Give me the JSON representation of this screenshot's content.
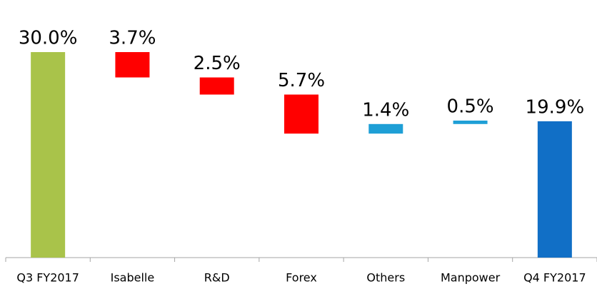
{
  "chart_data": {
    "type": "waterfall",
    "categories": [
      "Q3 FY2017",
      "Isabelle",
      "R&D",
      "Forex",
      "Others",
      "Manpower",
      "Q4 FY2017"
    ],
    "measures": [
      "total",
      "relative",
      "relative",
      "relative",
      "relative",
      "relative",
      "total"
    ],
    "values": [
      30.0,
      -3.7,
      -2.5,
      -5.7,
      1.4,
      0.5,
      19.9
    ],
    "value_labels": [
      "30.0%",
      "3.7%",
      "2.5%",
      "5.7%",
      "1.4%",
      "0.5%",
      "19.9%"
    ],
    "colors": [
      "#a9c34a",
      "#ff0000",
      "#ff0000",
      "#ff0000",
      "#1e9fd6",
      "#1e9fd6",
      "#116fc6"
    ]
  }
}
